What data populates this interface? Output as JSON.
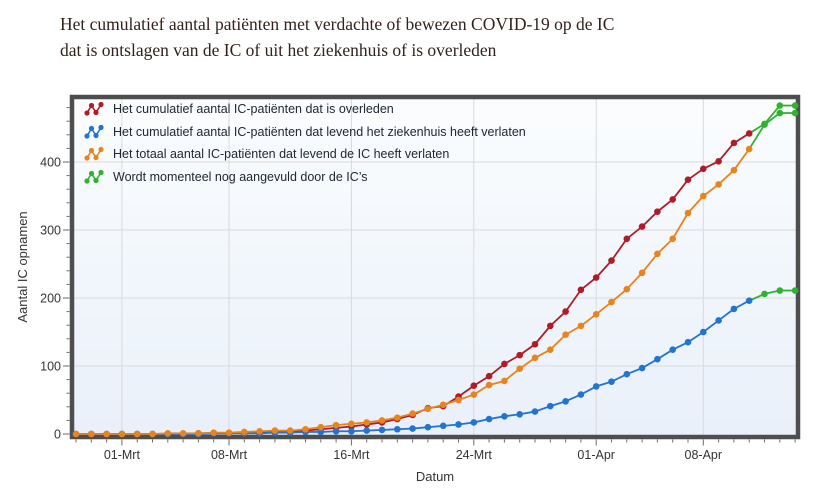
{
  "title": {
    "line1": "Het cumulatief aantal patiënten met verdachte of bewezen COVID-19 op de IC",
    "line2": "dat is ontslagen van de IC of uit het ziekenhuis of is overleden"
  },
  "colors": {
    "border": "#4e4e4e",
    "grid": "#d9d9d9",
    "axis_text": "#333333",
    "title_text": "#33211b",
    "plot_bg_top": "#fbfdfe",
    "plot_bg_bottom": "#e9f0fa"
  },
  "chart_data": {
    "type": "line",
    "title": "Het cumulatief aantal patiënten met verdachte of bewezen COVID-19 op de IC dat is ontslagen van de IC of uit het ziekenhuis of is overleden",
    "xlabel": "Datum",
    "ylabel": "Aantal IC opnamen",
    "ylim": [
      0,
      495
    ],
    "y_ticks": [
      0,
      100,
      200,
      300,
      400
    ],
    "y_minor_step": 20,
    "grid": true,
    "legend_position": "top-left-inside",
    "x_tick_labels": [
      "01-Mrt",
      "08-Mrt",
      "16-Mrt",
      "24-Mrt",
      "01-Apr",
      "08-Apr"
    ],
    "x_tick_indices": [
      3,
      10,
      18,
      26,
      34,
      41
    ],
    "x_dates": [
      "27-Feb",
      "28-Feb",
      "29-Feb",
      "01-Mrt",
      "02-Mrt",
      "03-Mrt",
      "04-Mrt",
      "05-Mrt",
      "06-Mrt",
      "07-Mrt",
      "08-Mrt",
      "09-Mrt",
      "10-Mrt",
      "11-Mrt",
      "12-Mrt",
      "13-Mrt",
      "14-Mrt",
      "15-Mrt",
      "16-Mrt",
      "17-Mrt",
      "18-Mrt",
      "19-Mrt",
      "20-Mrt",
      "21-Mrt",
      "22-Mrt",
      "23-Mrt",
      "24-Mrt",
      "25-Mrt",
      "26-Mrt",
      "27-Mrt",
      "28-Mrt",
      "29-Mrt",
      "30-Mrt",
      "31-Mrt",
      "01-Apr",
      "02-Apr",
      "03-Apr",
      "04-Apr",
      "05-Apr",
      "06-Apr",
      "07-Apr",
      "08-Apr",
      "09-Apr",
      "10-Apr",
      "11-Apr",
      "12-Apr",
      "13-Apr",
      "14-Apr"
    ],
    "series": [
      {
        "name": "Het cumulatief aantal IC-patiënten dat is overleden",
        "color": "#b01b28",
        "values": [
          0,
          0,
          0,
          0,
          0,
          0,
          0,
          0,
          1,
          1,
          1,
          2,
          2,
          3,
          4,
          5,
          7,
          9,
          11,
          14,
          17,
          22,
          28,
          38,
          41,
          55,
          71,
          85,
          103,
          116,
          132,
          159,
          180,
          212,
          230,
          255,
          287,
          305,
          327,
          345,
          374,
          390,
          401,
          428,
          442,
          456,
          483,
          483
        ]
      },
      {
        "name": "Het cumulatief aantal IC-patiënten dat levend het ziekenhuis heeft verlaten",
        "color": "#2274d0",
        "values": [
          0,
          0,
          0,
          0,
          0,
          0,
          0,
          0,
          0,
          1,
          1,
          1,
          1,
          2,
          2,
          3,
          3,
          4,
          4,
          5,
          6,
          7,
          8,
          10,
          12,
          14,
          17,
          22,
          26,
          29,
          33,
          41,
          48,
          58,
          70,
          77,
          88,
          97,
          110,
          124,
          135,
          150,
          167,
          184,
          196,
          206,
          211,
          211
        ]
      },
      {
        "name": "Het totaal aantal IC-patiënten dat levend de IC heeft verlaten",
        "color": "#e8831d",
        "values": [
          0,
          0,
          0,
          0,
          0,
          0,
          1,
          1,
          1,
          2,
          2,
          3,
          4,
          5,
          5,
          7,
          10,
          13,
          15,
          17,
          20,
          24,
          30,
          37,
          43,
          50,
          58,
          72,
          78,
          96,
          112,
          124,
          146,
          159,
          176,
          194,
          213,
          237,
          265,
          287,
          325,
          350,
          367,
          388,
          419,
          455,
          472,
          472
        ]
      }
    ],
    "provisional": {
      "name": "Wordt momenteel nog aangevuld door de IC’s",
      "color": "#2fb32f",
      "from_index": 45,
      "note": "points from this date index onward are drawn in green on every series (data still being updated by the ICs)"
    }
  }
}
